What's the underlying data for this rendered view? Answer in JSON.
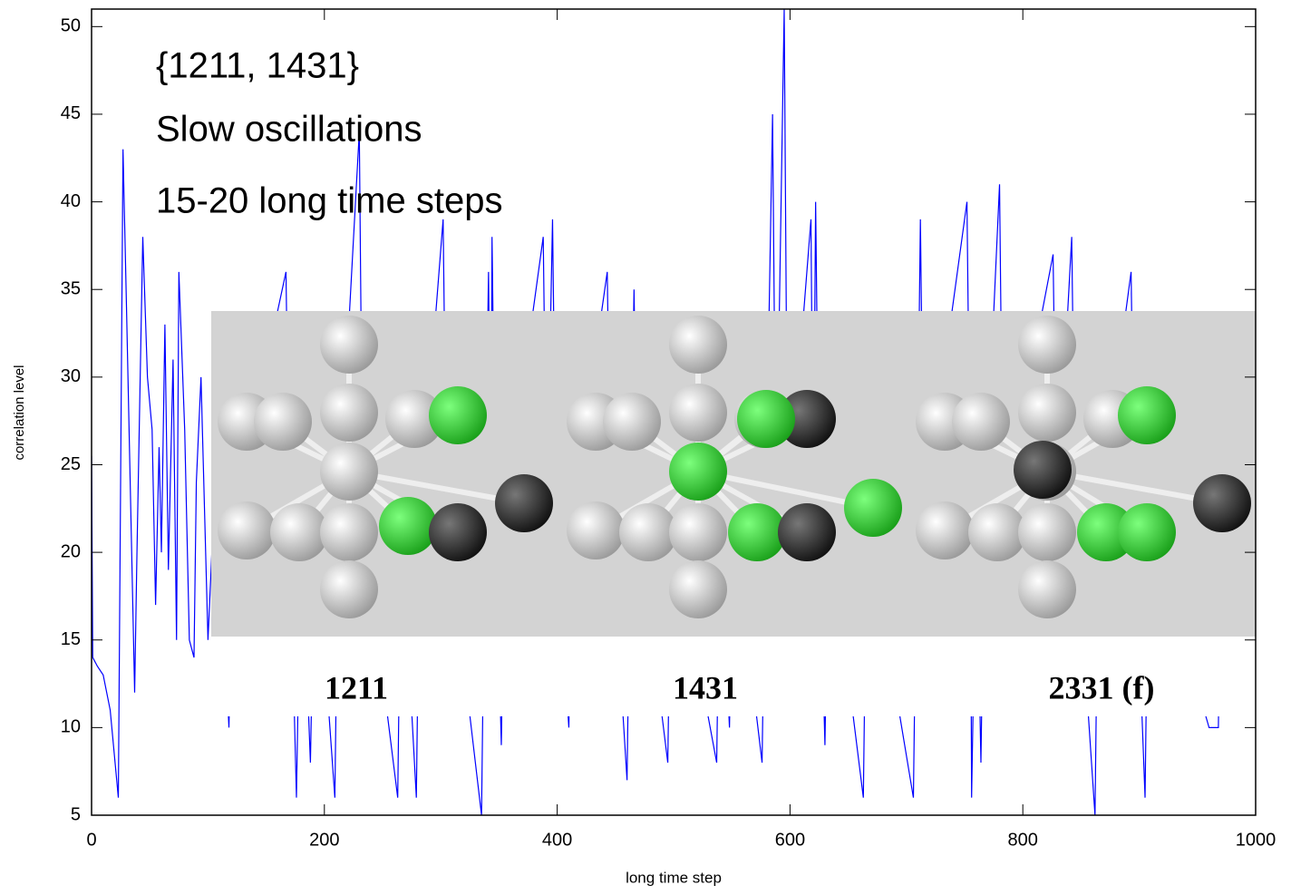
{
  "chart_data": {
    "type": "line",
    "x_label": "long time step",
    "y_label": "correlation level",
    "annotations": [
      "{1211, 1431}",
      "Slow oscillations",
      "15-20 long time steps"
    ],
    "structure_labels": [
      "1211",
      "1431",
      "2331 (f)"
    ],
    "xlim": [
      0,
      1000
    ],
    "xticks": [
      0,
      200,
      400,
      600,
      800,
      1000
    ],
    "ylim": [
      5,
      51
    ],
    "yticks": [
      5,
      10,
      15,
      20,
      25,
      30,
      35,
      40,
      45,
      50
    ],
    "series": [
      {
        "color": "#0000ff",
        "x": [
          0,
          1,
          5,
          10,
          16,
          23,
          27,
          30,
          37,
          39,
          44,
          48,
          52,
          55,
          58,
          60,
          63,
          66,
          70,
          73,
          75,
          80,
          84,
          88,
          90,
          94,
          100,
          104,
          110,
          118,
          122,
          167,
          170,
          176,
          180,
          188,
          192,
          209,
          212,
          230,
          233,
          263,
          266,
          279,
          282,
          302,
          305,
          335,
          338,
          341,
          343,
          344,
          347,
          352,
          355,
          388,
          391,
          396,
          399,
          410,
          413,
          443,
          446,
          460,
          463,
          466,
          469,
          495,
          498,
          537,
          540,
          548,
          551,
          576,
          579,
          585,
          588,
          595,
          598,
          618,
          620,
          622,
          625,
          630,
          633,
          663,
          666,
          706,
          709,
          712,
          715,
          752,
          755,
          756,
          760,
          764,
          767,
          780,
          783,
          826,
          829,
          842,
          845,
          862,
          865,
          893,
          896,
          905,
          908,
          960,
          968,
          970,
          1000
        ],
        "values": [
          25.5,
          14,
          13.5,
          13,
          11,
          6,
          43,
          34,
          12,
          20,
          38,
          30,
          27,
          17,
          26,
          20,
          33,
          19,
          31,
          15,
          36,
          27,
          15,
          14,
          24,
          30,
          15,
          21,
          22,
          10,
          22,
          36,
          22,
          6,
          22,
          8,
          22,
          6,
          22,
          44,
          22,
          6,
          22,
          6,
          22,
          39,
          22,
          5,
          22,
          36,
          22,
          38,
          22,
          9,
          22,
          38,
          22,
          39,
          22,
          10,
          22,
          36,
          22,
          7,
          22,
          35,
          22,
          8,
          22,
          8,
          22,
          10,
          22,
          8,
          22,
          45,
          22,
          51,
          22,
          39,
          22,
          40,
          22,
          9,
          22,
          6,
          22,
          6,
          22,
          39,
          22,
          40,
          22,
          6,
          22,
          8,
          22,
          41,
          22,
          37,
          22,
          38,
          22,
          5,
          22,
          36,
          22,
          6,
          22,
          10,
          10,
          22,
          22
        ]
      }
    ]
  }
}
